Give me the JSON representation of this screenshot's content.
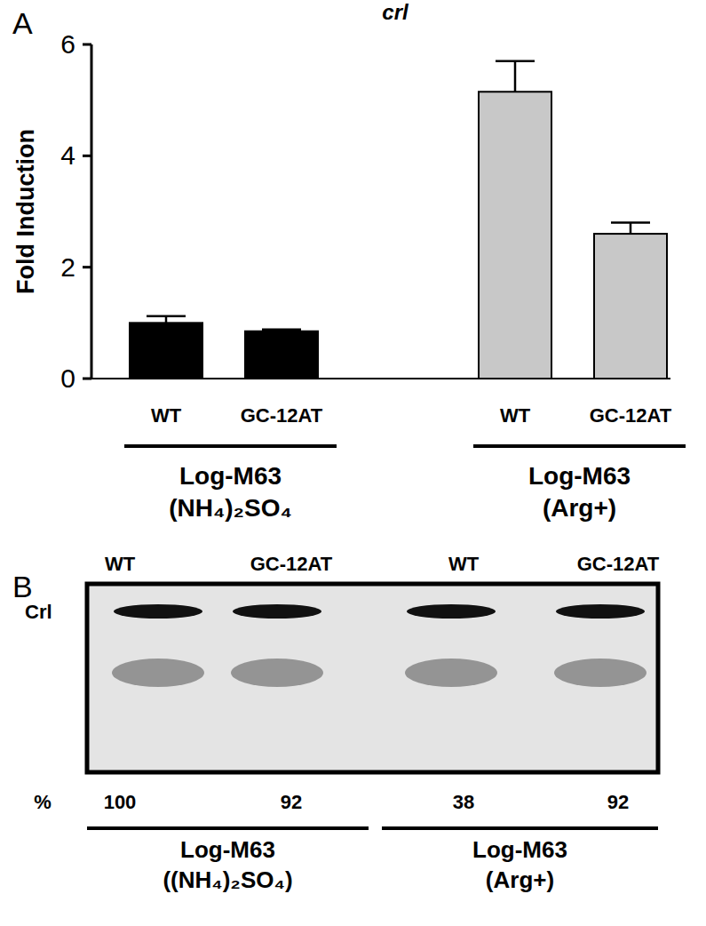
{
  "chart_data": {
    "type": "bar",
    "panel": "A",
    "title": "crl",
    "y_label": "Fold Induction",
    "categories": [
      "WT",
      "GC-12AT",
      "WT",
      "GC-12AT"
    ],
    "values": [
      1.0,
      0.85,
      5.15,
      2.6
    ],
    "errors": [
      0.12,
      0.03,
      0.55,
      0.2
    ],
    "colors": [
      "#000000",
      "#000000",
      "#c8c8c8",
      "#c8c8c8"
    ],
    "ylim": [
      0,
      6
    ],
    "yticks": [
      0,
      2,
      4,
      6
    ],
    "groups": [
      {
        "label": [
          "Log-M63",
          "(NH₄)₂SO₄"
        ],
        "size": 2
      },
      {
        "label": [
          "Log-M63",
          "(Arg+)"
        ],
        "size": 2
      }
    ]
  },
  "blot": {
    "panel": "B",
    "row_label": "Crl",
    "lanes": [
      "WT",
      "GC-12AT",
      "WT",
      "GC-12AT"
    ],
    "percent_header": "%",
    "percents": [
      100,
      92,
      38,
      92
    ],
    "groups": [
      {
        "label": [
          "Log-M63",
          "((NH₄)₂SO₄)"
        ],
        "size": 2
      },
      {
        "label": [
          "Log-M63",
          "(Arg+)"
        ],
        "size": 2
      }
    ]
  }
}
